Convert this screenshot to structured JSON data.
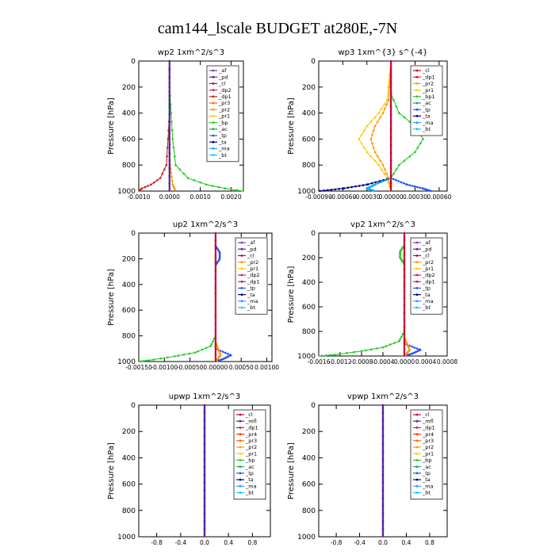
{
  "figure_title": "cam144_lscale  BUDGET at280E,-7N",
  "y_axis_label": "Pressure [hPa]",
  "chart_data": [
    {
      "type": "line",
      "title": "wp2  1xm^2/s^3",
      "ylabel": "Pressure [hPa]",
      "ylim": [
        1000,
        0
      ],
      "xlim": [
        -0.001,
        0.0024
      ],
      "yticks": [
        0,
        200,
        400,
        600,
        800,
        1000
      ],
      "xticks": [
        -0.001,
        0,
        0.001,
        0.002
      ],
      "xtick_labels": [
        "-0.0010",
        "0.0000",
        "0.0010",
        "0.0020"
      ],
      "legend_position": "top-right",
      "legend": [
        "_af",
        "_pd",
        "_cl",
        "_dp2",
        "_dp1",
        "_pr3",
        "_pr2",
        "_pr1",
        "_bp",
        "_ac",
        "_tp",
        "_ta",
        "_ma",
        "_bt"
      ],
      "series": [
        {
          "name": "_bp",
          "color": "#22cc22",
          "y": [
            0,
            200,
            400,
            600,
            800,
            900,
            950,
            980,
            1000
          ],
          "x": [
            0,
            0,
            5e-05,
            0.0001,
            0.0002,
            0.0006,
            0.0012,
            0.0018,
            0.0024
          ]
        },
        {
          "name": "_pr1",
          "color": "#cc2222",
          "y": [
            0,
            200,
            400,
            600,
            800,
            900,
            950,
            980,
            1000
          ],
          "x": [
            0,
            0,
            0,
            -5e-05,
            -0.0001,
            -0.0003,
            -0.0006,
            -0.0009,
            -0.001
          ]
        },
        {
          "name": "_pr2",
          "color": "#ff9900",
          "y": [
            0,
            400,
            800,
            950,
            1000
          ],
          "x": [
            0,
            0,
            2e-05,
            0.0001,
            0.0002
          ]
        },
        {
          "name": "_pd",
          "color": "#5522aa",
          "y": [
            0,
            1000
          ],
          "x": [
            0,
            0
          ]
        }
      ]
    },
    {
      "type": "line",
      "title": "wp3  1xm^{3} s^{-4}",
      "ylabel": "Pressure [hPa]",
      "ylim": [
        1000,
        0
      ],
      "xlim": [
        -0.0009,
        0.0007
      ],
      "yticks": [
        0,
        200,
        400,
        600,
        800,
        1000
      ],
      "xticks": [
        -0.0009,
        -0.0006,
        -0.0003,
        0,
        0.0003,
        0.0006
      ],
      "xtick_labels": [
        "-0.00090",
        "-0.00060",
        "-0.00030",
        "0.00000",
        "0.00030",
        "0.00060"
      ],
      "legend_position": "top-right",
      "legend": [
        "_cl",
        "_dp1",
        "_pr2",
        "_pr1",
        "_bp1",
        "_ac",
        "_tp",
        "_ta",
        "_ma",
        "_bt"
      ],
      "series": [
        {
          "name": "_ac",
          "color": "#22cc22",
          "y": [
            0,
            250,
            400,
            500,
            600,
            700,
            800,
            900,
            1000
          ],
          "x": [
            0,
            0,
            0.0001,
            0.0003,
            0.0004,
            0.0003,
            0.0001,
            0,
            0
          ]
        },
        {
          "name": "_pr2",
          "color": "#ffcc00",
          "y": [
            0,
            300,
            400,
            500,
            600,
            700,
            800,
            900,
            1000
          ],
          "x": [
            0,
            -5e-05,
            -0.00015,
            -0.0003,
            -0.0004,
            -0.0003,
            -0.00015,
            -5e-05,
            0
          ]
        },
        {
          "name": "_pr1",
          "color": "#ff9900",
          "y": [
            0,
            300,
            400,
            500,
            600,
            700,
            800,
            900,
            1000
          ],
          "x": [
            0,
            -3e-05,
            -0.0001,
            -0.0002,
            -0.00025,
            -0.0002,
            -0.0001,
            -3e-05,
            0
          ]
        },
        {
          "name": "_tp",
          "color": "#2255ff",
          "y": [
            900,
            950,
            980,
            1000
          ],
          "x": [
            0,
            0.0002,
            0.0004,
            0.0005
          ]
        },
        {
          "name": "_ta",
          "color": "#000088",
          "y": [
            900,
            950,
            980,
            1000
          ],
          "x": [
            0,
            -0.0003,
            -0.0006,
            -0.0009
          ]
        },
        {
          "name": "_ma",
          "color": "#00aaff",
          "y": [
            900,
            950,
            980,
            1000
          ],
          "x": [
            0,
            -0.0002,
            -0.0003,
            -0.0002
          ]
        },
        {
          "name": "_cl",
          "color": "#cc0033",
          "y": [
            0,
            1000
          ],
          "x": [
            0,
            0
          ]
        }
      ]
    },
    {
      "type": "line",
      "title": "up2  1xm^2/s^3",
      "ylabel": "Pressure [hPa]",
      "ylim": [
        1000,
        0
      ],
      "xlim": [
        -0.0015,
        0.0011
      ],
      "yticks": [
        0,
        200,
        400,
        600,
        800,
        1000
      ],
      "xticks": [
        -0.0015,
        -0.001,
        -0.0005,
        0,
        0.0005,
        0.001
      ],
      "xtick_labels": [
        "-0.00150",
        "-0.00100",
        "-0.00050",
        "0.00000",
        "0.00050",
        "0.00100"
      ],
      "legend_position": "top-right",
      "legend": [
        "_af",
        "_pd",
        "_cl",
        "_pr2",
        "_pr1",
        "_dp2",
        "_dp1",
        "_tp",
        "_ta",
        "_ma",
        "_bt"
      ],
      "series": [
        {
          "name": "_dp1",
          "color": "#22cc22",
          "y": [
            0,
            800,
            880,
            930,
            960,
            990,
            1000
          ],
          "x": [
            0,
            0,
            -0.0001,
            -0.0004,
            -0.0008,
            -0.0013,
            -0.0015
          ]
        },
        {
          "name": "_dp2",
          "color": "#2255ff",
          "y": [
            100,
            150,
            200,
            250
          ],
          "x": [
            0,
            8e-05,
            8e-05,
            0
          ]
        },
        {
          "name": "_tp",
          "color": "#2255ff",
          "y": [
            900,
            950,
            980,
            1000
          ],
          "x": [
            0,
            0.0003,
            0.00015,
            0
          ]
        },
        {
          "name": "_pr1",
          "color": "#ff9900",
          "y": [
            850,
            950,
            1000
          ],
          "x": [
            0,
            0.0001,
            0
          ]
        },
        {
          "name": "_af",
          "color": "#cc0033",
          "y": [
            0,
            1000
          ],
          "x": [
            0,
            0
          ]
        }
      ]
    },
    {
      "type": "line",
      "title": "vp2  1xm^2/s^3",
      "ylabel": "Pressure [hPa]",
      "ylim": [
        1000,
        0
      ],
      "xlim": [
        -0.0016,
        0.0008
      ],
      "yticks": [
        0,
        200,
        400,
        600,
        800,
        1000
      ],
      "xticks": [
        -0.0016,
        -0.0012,
        -0.0008,
        -0.0004,
        0,
        0.0004,
        0.0008
      ],
      "xtick_labels": [
        "-0.0016",
        "-0.0012",
        "-0.0008",
        "-0.0004",
        "0.0000",
        "0.0004",
        "0.0008"
      ],
      "legend_position": "top-right",
      "legend": [
        "_af",
        "_pd",
        "_cl",
        "_pr2",
        "_pr1",
        "_dp2",
        "_dp1",
        "_tp",
        "_ta",
        "_ma",
        "_bt"
      ],
      "series": [
        {
          "name": "_dp1",
          "color": "#22cc22",
          "y": [
            0,
            800,
            880,
            930,
            960,
            990,
            1000
          ],
          "x": [
            0,
            0,
            -0.0001,
            -0.0004,
            -0.0008,
            -0.0013,
            -0.0016
          ]
        },
        {
          "name": "_dp2",
          "color": "#22cc22",
          "y": [
            100,
            150,
            200,
            250
          ],
          "x": [
            0,
            -8e-05,
            -8e-05,
            0
          ]
        },
        {
          "name": "_tp",
          "color": "#2255ff",
          "y": [
            900,
            950,
            980,
            1000
          ],
          "x": [
            0,
            0.0003,
            0.00015,
            0
          ]
        },
        {
          "name": "_pr1",
          "color": "#ff9900",
          "y": [
            850,
            950,
            1000
          ],
          "x": [
            0,
            0.0001,
            0
          ]
        },
        {
          "name": "_af",
          "color": "#cc0033",
          "y": [
            0,
            1000
          ],
          "x": [
            0,
            0
          ]
        }
      ]
    },
    {
      "type": "line",
      "title": "upwp  1xm^2/s^3",
      "ylabel": "Pressure [hPa]",
      "ylim": [
        1000,
        0
      ],
      "xlim": [
        -1.1,
        1.1
      ],
      "yticks": [
        0,
        200,
        400,
        600,
        800,
        1000
      ],
      "xticks": [
        -0.8,
        -0.4,
        0,
        0.4,
        0.8
      ],
      "xtick_labels": [
        "-0.8",
        "-0.4",
        "0.0",
        "0.4",
        "0.8"
      ],
      "legend_position": "top-right",
      "legend": [
        "_cl",
        "_mfl",
        "_dp1",
        "_pr4",
        "_pr3",
        "_pr2",
        "_pr1",
        "_bp",
        "_ac",
        "_tp",
        "_ta",
        "_ma",
        "_bt"
      ],
      "series": [
        {
          "name": "_cl",
          "color": "#cc0033",
          "y": [
            0,
            1000
          ],
          "x": [
            0,
            0
          ]
        },
        {
          "name": "_mfl",
          "color": "#5522aa",
          "y": [
            0,
            1000
          ],
          "x": [
            0,
            0
          ]
        }
      ]
    },
    {
      "type": "line",
      "title": "vpwp  1xm^2/s^3",
      "ylabel": "Pressure [hPa]",
      "ylim": [
        1000,
        0
      ],
      "xlim": [
        -1.1,
        1.1
      ],
      "yticks": [
        0,
        200,
        400,
        600,
        800,
        1000
      ],
      "xticks": [
        -0.8,
        -0.4,
        0,
        0.4,
        0.8
      ],
      "xtick_labels": [
        "-0.8",
        "-0.4",
        "0.0",
        "0.4",
        "0.8"
      ],
      "legend_position": "top-right",
      "legend": [
        "_cl",
        "_mfl",
        "_dp1",
        "_pr4",
        "_pr3",
        "_pr2",
        "_pr1",
        "_bp",
        "_ac",
        "_tp",
        "_ta",
        "_ma",
        "_bt"
      ],
      "series": [
        {
          "name": "_cl",
          "color": "#cc0033",
          "y": [
            0,
            1000
          ],
          "x": [
            0,
            0
          ]
        },
        {
          "name": "_mfl",
          "color": "#5522aa",
          "y": [
            0,
            1000
          ],
          "x": [
            0,
            0
          ]
        }
      ]
    }
  ],
  "legend_colors": {
    "_af": "#7744aa",
    "_pd": "#5522aa",
    "_cl": "#cc0033",
    "_mfl": "#5522aa",
    "_dp2": "#cc2255",
    "_dp1": "#cc2222",
    "_pr4": "#ff3300",
    "_pr3": "#ff6600",
    "_pr2": "#ff9900",
    "_pr1": "#ffcc00",
    "_bp": "#22cc22",
    "_bp1": "#22cc22",
    "_ac": "#22aa44",
    "_tp": "#2255ff",
    "_ta": "#000088",
    "_ma": "#3399ff",
    "_bt": "#00ccff"
  }
}
